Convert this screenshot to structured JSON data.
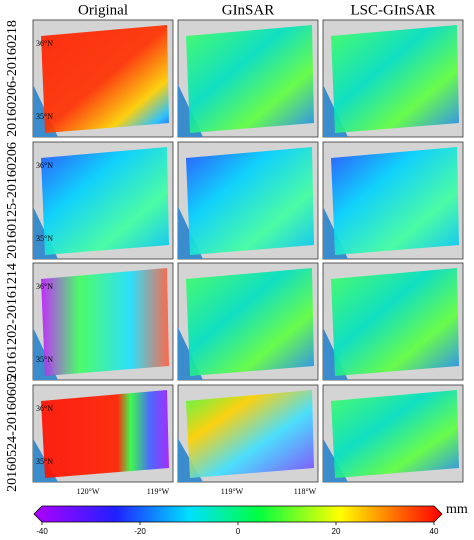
{
  "columns": [
    "Original",
    "GInSAR",
    "LSC-GInSAR"
  ],
  "rows": [
    "20160206-20160218",
    "20160125-20160206",
    "20161202-20161214",
    "20160524-20160605"
  ],
  "lat_labels": [
    "36°N",
    "35°N"
  ],
  "lon_labels": [
    "120°W",
    "119°W",
    "119°W",
    "118°W"
  ],
  "colorbar": {
    "unit": "mm",
    "lim": [
      -40,
      40
    ],
    "ticks": [
      -40,
      -20,
      0,
      20,
      40
    ]
  }
}
